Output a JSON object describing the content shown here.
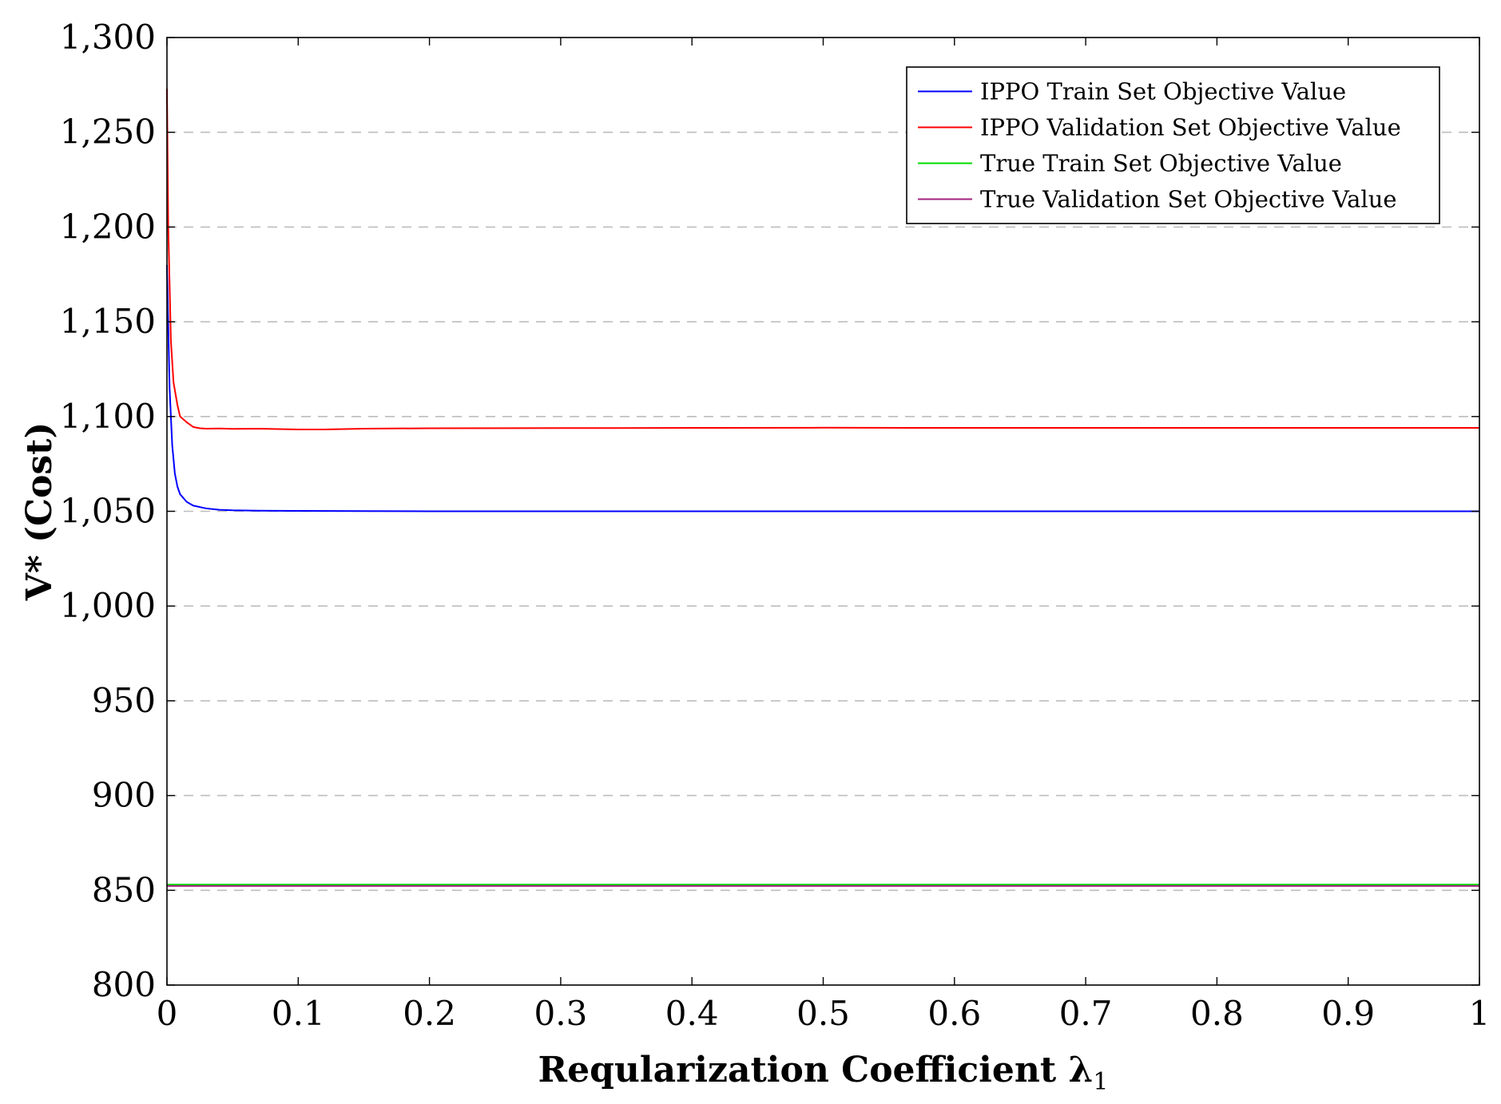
{
  "chart_data": {
    "type": "line",
    "xlabel": "Reqularization Coefficient λ",
    "xlabel_subscript": "1",
    "ylabel": "V* (Cost)",
    "xlim": [
      0,
      1
    ],
    "ylim": [
      800,
      1300
    ],
    "x_ticks": [
      0,
      0.1,
      0.2,
      0.3,
      0.4,
      0.5,
      0.6,
      0.7,
      0.8,
      0.9,
      1
    ],
    "x_tick_labels": [
      "0",
      "0.1",
      "0.2",
      "0.3",
      "0.4",
      "0.5",
      "0.6",
      "0.7",
      "0.8",
      "0.9",
      "1"
    ],
    "y_ticks": [
      800,
      850,
      900,
      950,
      1000,
      1050,
      1100,
      1150,
      1200,
      1250,
      1300
    ],
    "y_tick_labels": [
      "800",
      "850",
      "900",
      "950",
      "1,000",
      "1,050",
      "1,100",
      "1,150",
      "1,200",
      "1,250",
      "1,300"
    ],
    "grid": "horizontal dashed",
    "legend_position": "top-right",
    "series": [
      {
        "name": "IPPO Train Set Objective Value",
        "color": "#0000ff",
        "x": [
          0,
          0.002,
          0.004,
          0.006,
          0.008,
          0.01,
          0.015,
          0.02,
          0.03,
          0.04,
          0.05,
          0.07,
          0.1,
          0.15,
          0.2,
          0.3,
          0.4,
          0.5,
          0.6,
          0.7,
          0.8,
          0.9,
          1.0
        ],
        "y": [
          1180,
          1115,
          1085,
          1070,
          1063,
          1059,
          1055,
          1053,
          1051.5,
          1050.8,
          1050.5,
          1050.3,
          1050.2,
          1050.1,
          1050,
          1050,
          1050,
          1050,
          1050,
          1050,
          1050,
          1050,
          1050
        ]
      },
      {
        "name": "IPPO Validation Set Objective Value",
        "color": "#ff0000",
        "x": [
          0,
          0.001,
          0.003,
          0.005,
          0.008,
          0.01,
          0.015,
          0.02,
          0.025,
          0.03,
          0.04,
          0.05,
          0.07,
          0.1,
          0.12,
          0.15,
          0.2,
          0.3,
          0.4,
          0.5,
          0.6,
          0.7,
          0.8,
          0.9,
          1.0
        ],
        "y": [
          1273,
          1200,
          1140,
          1118,
          1106,
          1100,
          1097,
          1094.5,
          1093.8,
          1093.6,
          1093.7,
          1093.5,
          1093.6,
          1093.2,
          1093.2,
          1093.6,
          1093.8,
          1093.9,
          1094,
          1094.1,
          1094,
          1094,
          1094,
          1094,
          1094
        ]
      },
      {
        "name": "True Train Set Objective Value",
        "color": "#00dd00",
        "x": [
          0,
          1
        ],
        "y": [
          853,
          853
        ]
      },
      {
        "name": "True Validation Set Objective Value",
        "color": "#a3207f",
        "x": [
          0,
          1
        ],
        "y": [
          852.3,
          852.3
        ]
      }
    ]
  }
}
